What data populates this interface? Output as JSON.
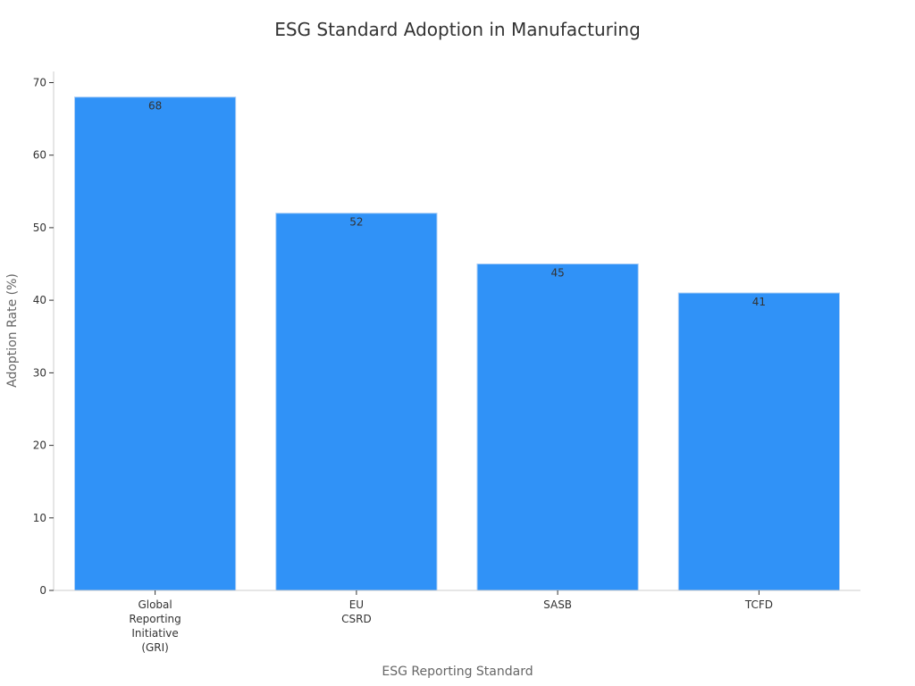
{
  "chart_data": {
    "type": "bar",
    "title": "ESG Standard Adoption in Manufacturing",
    "xlabel": "ESG Reporting Standard",
    "ylabel": "Adoption Rate (%)",
    "categories": [
      "Global Reporting Initiative (GRI)",
      "EU CSRD",
      "SASB",
      "TCFD"
    ],
    "category_lines": [
      [
        "Global",
        "Reporting",
        "Initiative",
        "(GRI)"
      ],
      [
        "EU",
        "CSRD"
      ],
      [
        "SASB"
      ],
      [
        "TCFD"
      ]
    ],
    "values": [
      68,
      52,
      45,
      41
    ],
    "data_labels": [
      "68",
      "52",
      "45",
      "41"
    ],
    "ylim": [
      0,
      70
    ],
    "yticks": [
      0,
      10,
      20,
      30,
      40,
      50,
      60,
      70
    ],
    "ytick_labels": [
      "0",
      "10",
      "20",
      "30",
      "40",
      "50",
      "60",
      "70"
    ],
    "grid": false,
    "legend": "none",
    "colors": {
      "bar": "#3092f7",
      "bar_edge": "#a9cdf6"
    }
  }
}
